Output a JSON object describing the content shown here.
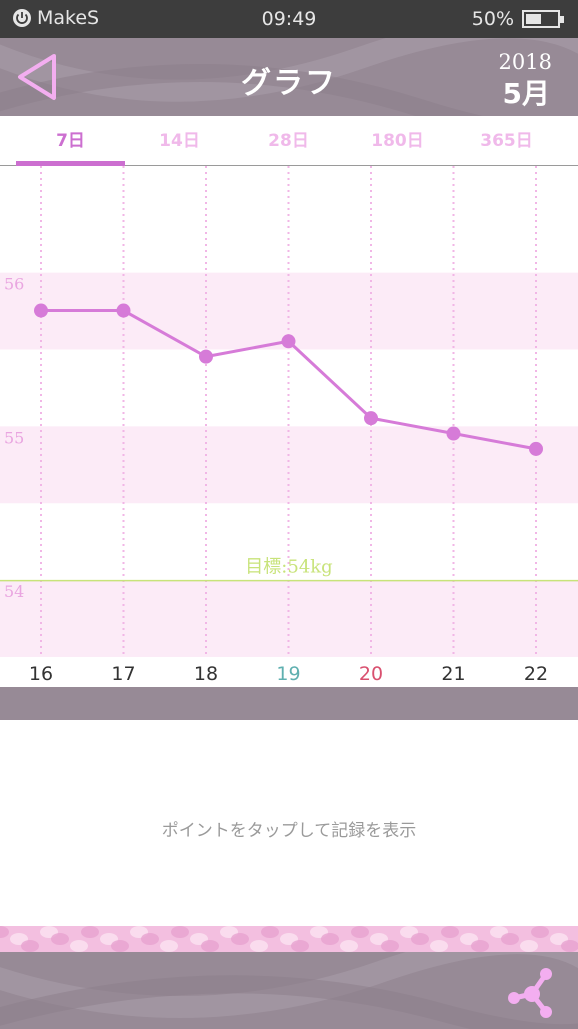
{
  "status_bar": {
    "carrier": "MakeS",
    "time": "09:49",
    "battery": "50%",
    "battery_level": 0.5
  },
  "header": {
    "title": "グラフ",
    "year": "2018",
    "month": "5月"
  },
  "tabs": [
    {
      "label": "7日",
      "active": true
    },
    {
      "label": "14日",
      "active": false
    },
    {
      "label": "28日",
      "active": false
    },
    {
      "label": "180日",
      "active": false
    },
    {
      "label": "365日",
      "active": false
    }
  ],
  "chart_data": {
    "type": "line",
    "x": [
      "16",
      "17",
      "18",
      "19",
      "20",
      "21",
      "22"
    ],
    "series": [
      {
        "values": [
          55.76,
          55.76,
          55.46,
          55.56,
          55.06,
          54.96,
          54.86
        ]
      }
    ],
    "ylim": [
      53.5,
      56.7
    ],
    "yticks": [
      "56",
      "55",
      "54"
    ],
    "target": {
      "label": "目標:54kg",
      "value": 54
    },
    "x_label_colors": [
      "#333333",
      "#333333",
      "#333333",
      "#5fb0b0",
      "#d9506f",
      "#333333",
      "#333333"
    ],
    "line_color": "#d67bd8",
    "band_color": "#fcebf7",
    "grid": true
  },
  "info": {
    "message": "ポイントをタップして記録を表示"
  },
  "colors": {
    "accent": "#cc6fd0",
    "bar": "#978a96",
    "tab_inactive": "#f0b9ea",
    "target_line": "#c8e37a"
  }
}
